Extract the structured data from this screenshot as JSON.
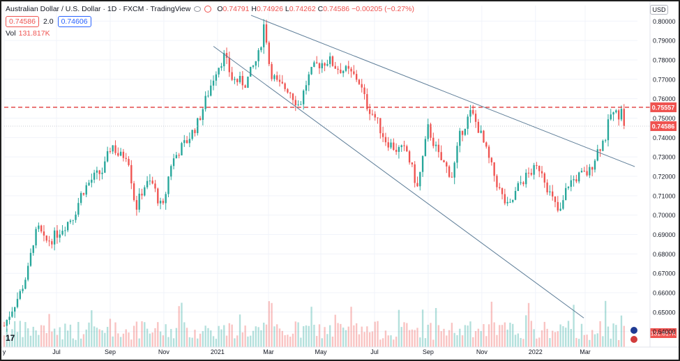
{
  "header": {
    "title": "Australian Dollar / U.S. Dollar · 1D · FXCM · TradingView",
    "ohlc": [
      {
        "k": "O",
        "v": "0.74791"
      },
      {
        "k": "H",
        "v": "0.74926"
      },
      {
        "k": "L",
        "v": "0.74262"
      },
      {
        "k": "C",
        "v": "0.74586"
      },
      {
        "k": "",
        "v": "−0.00205 (−0.27%)"
      }
    ],
    "bid": "0.74586",
    "spread": "2.0",
    "ask": "0.74606",
    "vol_label": "Vol",
    "vol_value": "131.817K",
    "currency": "USD",
    "logo_text": "17"
  },
  "colors": {
    "up": "#26a69a",
    "down": "#ef5350",
    "trendline": "#5b7b96",
    "dashed": "#e03a3a",
    "grid": "#f0f3fa",
    "axis_text": "#131722"
  },
  "chart_data": {
    "type": "candlestick",
    "symbol": "AUDUSD",
    "timeframe": "1D",
    "xlabel": "",
    "ylabel": "",
    "ylim": [
      0.632,
      0.808
    ],
    "y_ticks": [
      "0.80000",
      "0.79000",
      "0.78000",
      "0.77000",
      "0.76000",
      "0.75000",
      "0.74000",
      "0.73000",
      "0.72000",
      "0.71000",
      "0.70000",
      "0.69000",
      "0.68000",
      "0.67000",
      "0.66000",
      "0.65000",
      "0.64000"
    ],
    "x_ticks": [
      {
        "label": "y",
        "t": 0
      },
      {
        "label": "Jul",
        "t": 1.95
      },
      {
        "label": "Sep",
        "t": 3.95
      },
      {
        "label": "Nov",
        "t": 5.95
      },
      {
        "label": "2021",
        "t": 7.95
      },
      {
        "label": "Mar",
        "t": 9.85
      },
      {
        "label": "May",
        "t": 11.8
      },
      {
        "label": "Jul",
        "t": 13.8
      },
      {
        "label": "Sep",
        "t": 15.8
      },
      {
        "label": "Nov",
        "t": 17.8
      },
      {
        "label": "2022",
        "t": 19.8
      },
      {
        "label": "Mar",
        "t": 21.65
      }
    ],
    "price_path": [
      [
        0.0,
        0.643
      ],
      [
        0.3,
        0.652
      ],
      [
        0.6,
        0.66
      ],
      [
        0.9,
        0.672
      ],
      [
        1.1,
        0.688
      ],
      [
        1.3,
        0.693
      ],
      [
        1.5,
        0.686
      ],
      [
        1.8,
        0.688
      ],
      [
        2.2,
        0.694
      ],
      [
        2.6,
        0.7
      ],
      [
        2.9,
        0.712
      ],
      [
        3.3,
        0.719
      ],
      [
        3.7,
        0.723
      ],
      [
        4.0,
        0.737
      ],
      [
        4.3,
        0.73
      ],
      [
        4.6,
        0.732
      ],
      [
        4.9,
        0.703
      ],
      [
        5.2,
        0.715
      ],
      [
        5.5,
        0.717
      ],
      [
        5.9,
        0.702
      ],
      [
        6.2,
        0.726
      ],
      [
        6.5,
        0.733
      ],
      [
        6.8,
        0.738
      ],
      [
        7.2,
        0.747
      ],
      [
        7.6,
        0.763
      ],
      [
        7.9,
        0.775
      ],
      [
        8.2,
        0.782
      ],
      [
        8.5,
        0.77
      ],
      [
        9.0,
        0.768
      ],
      [
        9.5,
        0.783
      ],
      [
        9.7,
        0.8
      ],
      [
        9.9,
        0.775
      ],
      [
        10.2,
        0.767
      ],
      [
        10.6,
        0.765
      ],
      [
        11.0,
        0.756
      ],
      [
        11.3,
        0.77
      ],
      [
        11.6,
        0.777
      ],
      [
        12.1,
        0.78
      ],
      [
        12.4,
        0.776
      ],
      [
        12.8,
        0.774
      ],
      [
        13.2,
        0.77
      ],
      [
        13.5,
        0.757
      ],
      [
        13.8,
        0.751
      ],
      [
        14.2,
        0.739
      ],
      [
        14.6,
        0.734
      ],
      [
        15.0,
        0.733
      ],
      [
        15.4,
        0.714
      ],
      [
        15.8,
        0.745
      ],
      [
        16.2,
        0.73
      ],
      [
        16.7,
        0.72
      ],
      [
        17.0,
        0.742
      ],
      [
        17.4,
        0.753
      ],
      [
        17.7,
        0.744
      ],
      [
        18.1,
        0.727
      ],
      [
        18.5,
        0.711
      ],
      [
        18.8,
        0.703
      ],
      [
        19.2,
        0.716
      ],
      [
        19.6,
        0.722
      ],
      [
        20.0,
        0.725
      ],
      [
        20.3,
        0.712
      ],
      [
        20.7,
        0.7
      ],
      [
        21.0,
        0.716
      ],
      [
        21.4,
        0.72
      ],
      [
        21.8,
        0.722
      ],
      [
        22.1,
        0.733
      ],
      [
        22.4,
        0.74
      ],
      [
        22.6,
        0.752
      ],
      [
        22.9,
        0.752
      ],
      [
        23.0,
        0.757
      ],
      [
        23.1,
        0.7459
      ]
    ],
    "volume_range": [
      0,
      1.0
    ],
    "price_levels": [
      {
        "value": 0.75557,
        "label": "0.75557",
        "style": "dashed"
      },
      {
        "value": 0.74586,
        "label": "0.74586",
        "style": "dotted"
      }
    ],
    "last_volume_label": "131.817K",
    "trendlines": [
      {
        "from": [
          9.2,
          0.803
        ],
        "to": [
          23.5,
          0.725
        ]
      },
      {
        "from": [
          7.8,
          0.787
        ],
        "to": [
          21.6,
          0.647
        ]
      }
    ]
  }
}
